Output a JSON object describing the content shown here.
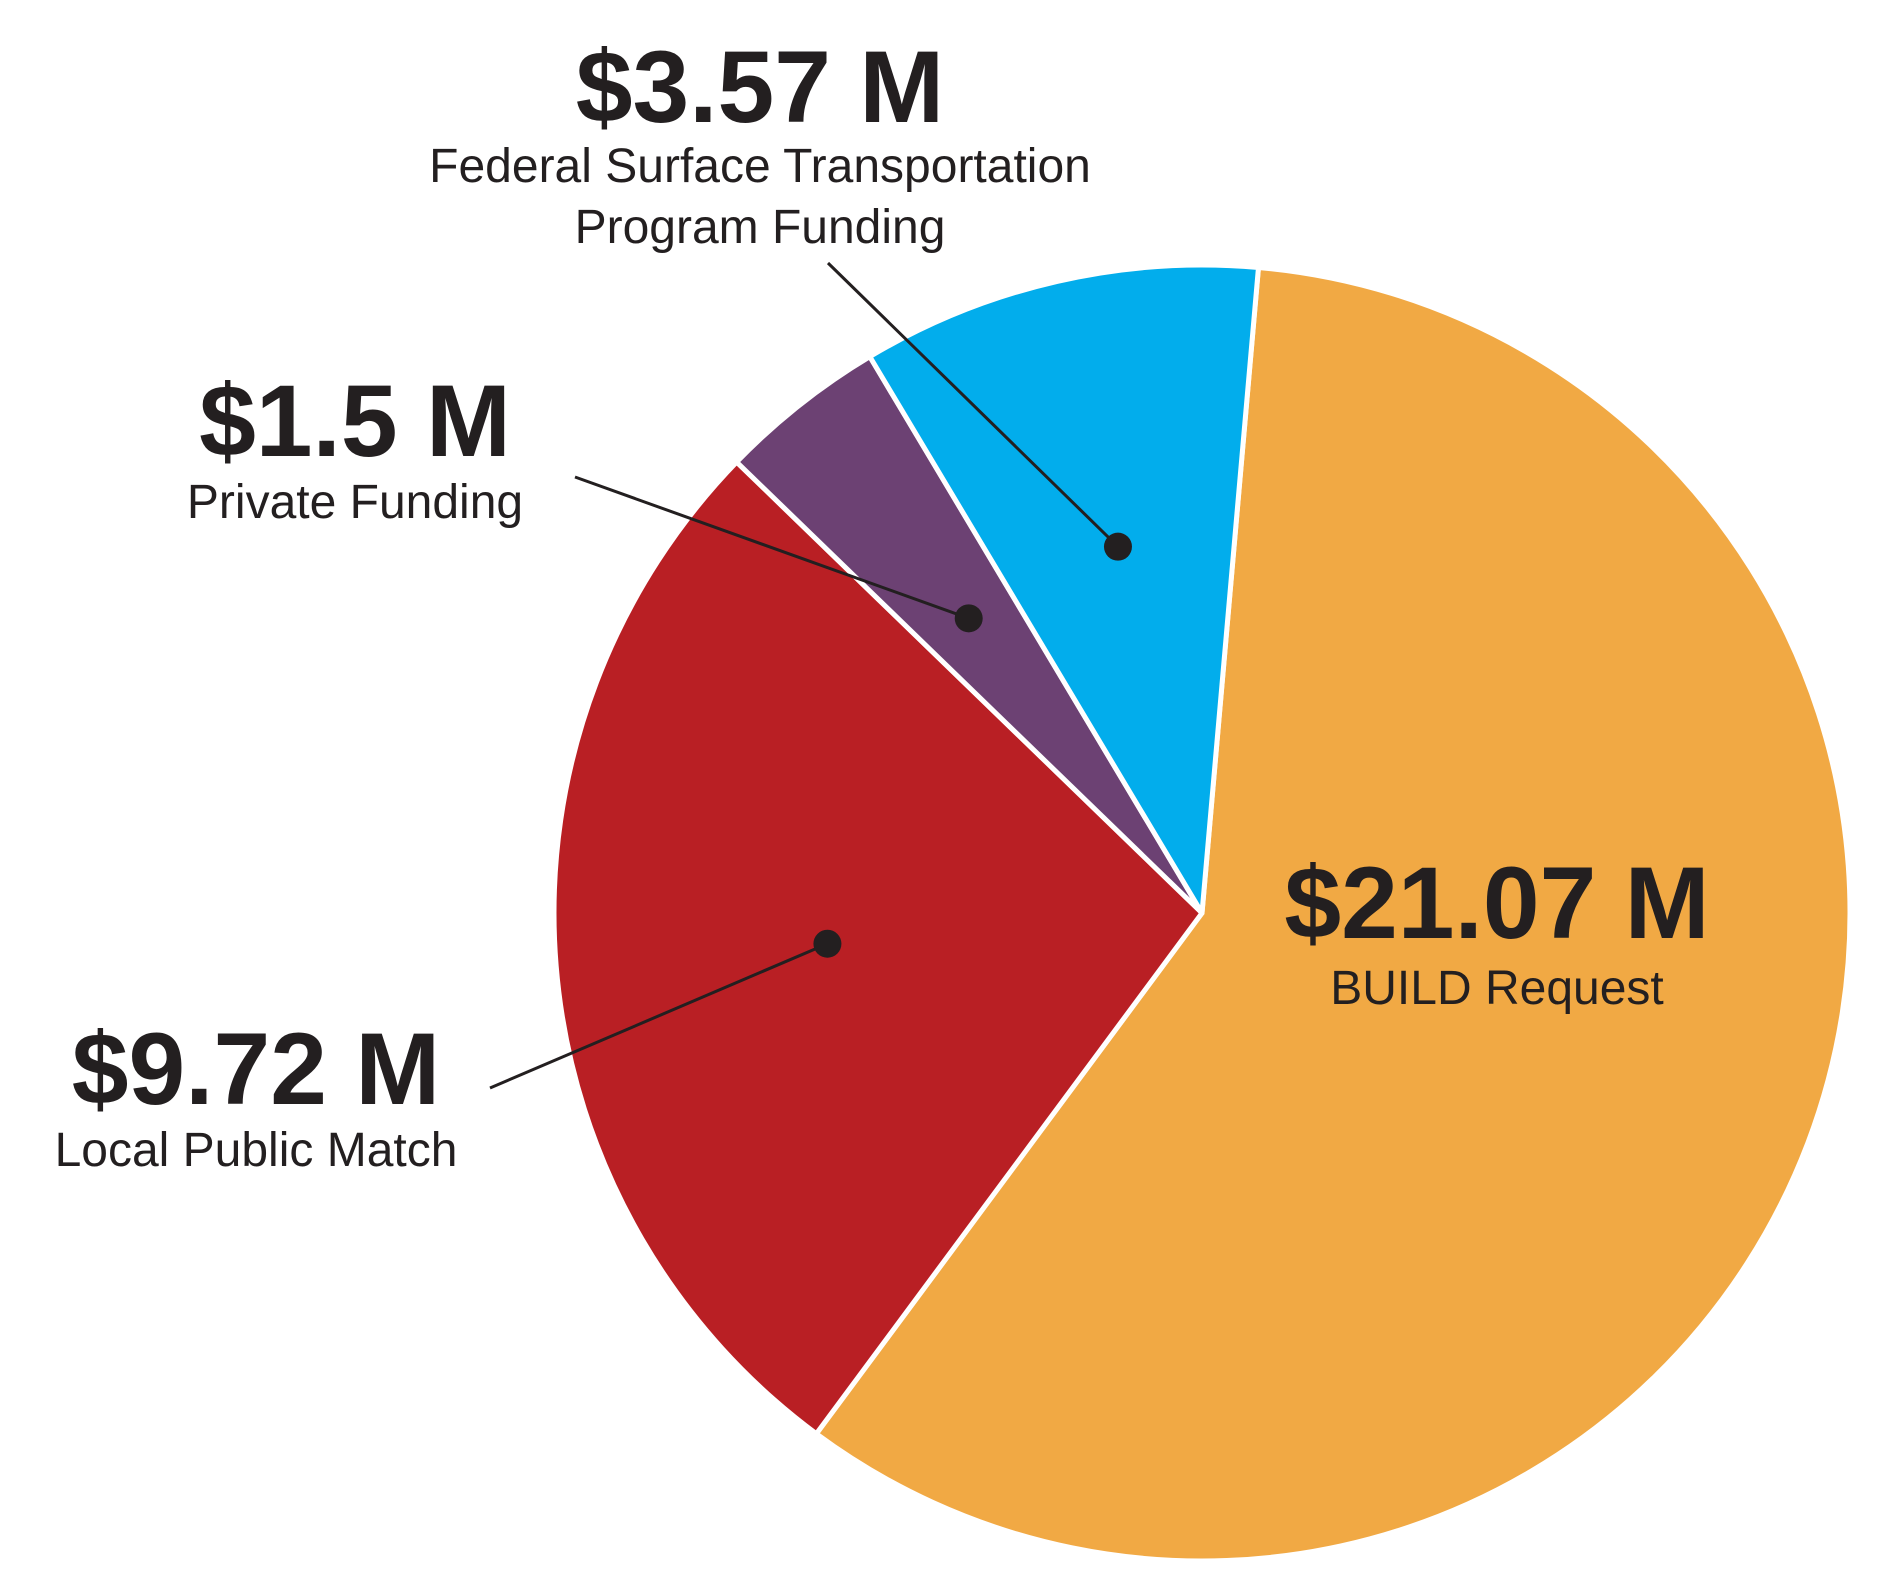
{
  "chart_data": {
    "type": "pie",
    "title": "",
    "slices": [
      {
        "label": "BUILD Request",
        "value": 21.07,
        "value_label": "$21.07 M",
        "color": "#f1a944"
      },
      {
        "label": "Local Public Match",
        "value": 9.72,
        "value_label": "$9.72 M",
        "color": "#b91f24"
      },
      {
        "label": "Private Funding",
        "value": 1.5,
        "value_label": "$1.5 M",
        "color": "#6c4173"
      },
      {
        "label": "Federal Surface Transportation Program Funding",
        "label_lines": [
          "Federal Surface Transportation",
          "Program Funding"
        ],
        "value": 3.57,
        "value_label": "$3.57 M",
        "color": "#02adec"
      }
    ],
    "start_angle_deg": 5,
    "direction": "clockwise",
    "legend": "none",
    "labels": "external with leader lines, except BUILD Request inside slice"
  }
}
